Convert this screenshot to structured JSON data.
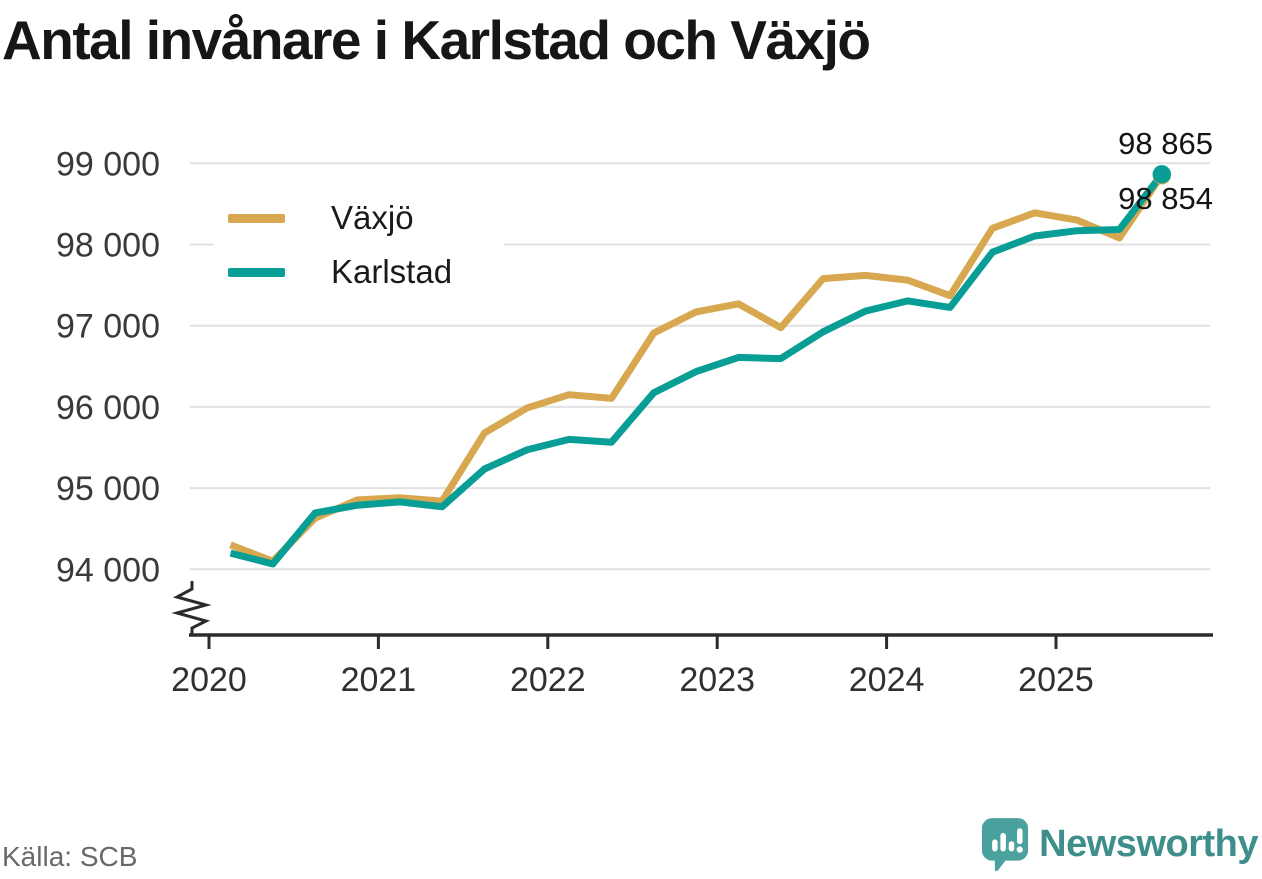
{
  "title": "Antal invånare i Karlstad och Växjö",
  "source": "Källa: SCB",
  "brand": {
    "name": "Newsworthy",
    "text_color": "#3E8E8C",
    "icon_color": "#4AA19E"
  },
  "legend": {
    "items": [
      {
        "label": "Växjö",
        "color": "#D7A84F"
      },
      {
        "label": "Karlstad",
        "color": "#089E96"
      }
    ]
  },
  "annotations": {
    "karlstad_last_label": "98 865",
    "vaxjo_last_label": "98 854"
  },
  "chart_data": {
    "type": "line",
    "title": "Antal invånare i Karlstad och Växjö",
    "xlabel": "",
    "ylabel": "",
    "x": [
      "2020 Q1",
      "2020 Q2",
      "2020 Q3",
      "2020 Q4",
      "2021 Q1",
      "2021 Q2",
      "2021 Q3",
      "2021 Q4",
      "2022 Q1",
      "2022 Q2",
      "2022 Q3",
      "2022 Q4",
      "2023 Q1",
      "2023 Q2",
      "2023 Q3",
      "2023 Q4",
      "2024 Q1",
      "2024 Q2",
      "2024 Q3",
      "2024 Q4",
      "2025 Q1",
      "2025 Q2",
      "2025 Q3"
    ],
    "series": [
      {
        "name": "Växjö",
        "color": "#D7A84F",
        "end_dot": true,
        "last_value": 98854,
        "values": [
          94300,
          94100,
          94630,
          94855,
          94880,
          94840,
          95680,
          95985,
          96150,
          96105,
          96910,
          97170,
          97270,
          96975,
          97580,
          97620,
          97560,
          97370,
          98200,
          98390,
          98300,
          98080,
          98854
        ]
      },
      {
        "name": "Karlstad",
        "color": "#089E96",
        "end_dot": true,
        "last_value": 98865,
        "values": [
          94200,
          94065,
          94695,
          94790,
          94830,
          94770,
          95235,
          95470,
          95600,
          95565,
          96175,
          96435,
          96610,
          96595,
          96925,
          97180,
          97305,
          97225,
          97905,
          98105,
          98170,
          98185,
          98865
        ]
      }
    ],
    "x_tick_labels": [
      "2020",
      "2021",
      "2022",
      "2023",
      "2024",
      "2025"
    ],
    "y_ticks": [
      99000,
      98000,
      97000,
      96000,
      95000,
      94000
    ],
    "y_tick_labels": [
      "99 000",
      "98 000",
      "97 000",
      "96 000",
      "95 000",
      "94 000"
    ],
    "ylim": [
      93500,
      99200
    ],
    "grid": "horizontal",
    "legend_position": "top-left-inside",
    "axis_break_bottom_left": true
  }
}
